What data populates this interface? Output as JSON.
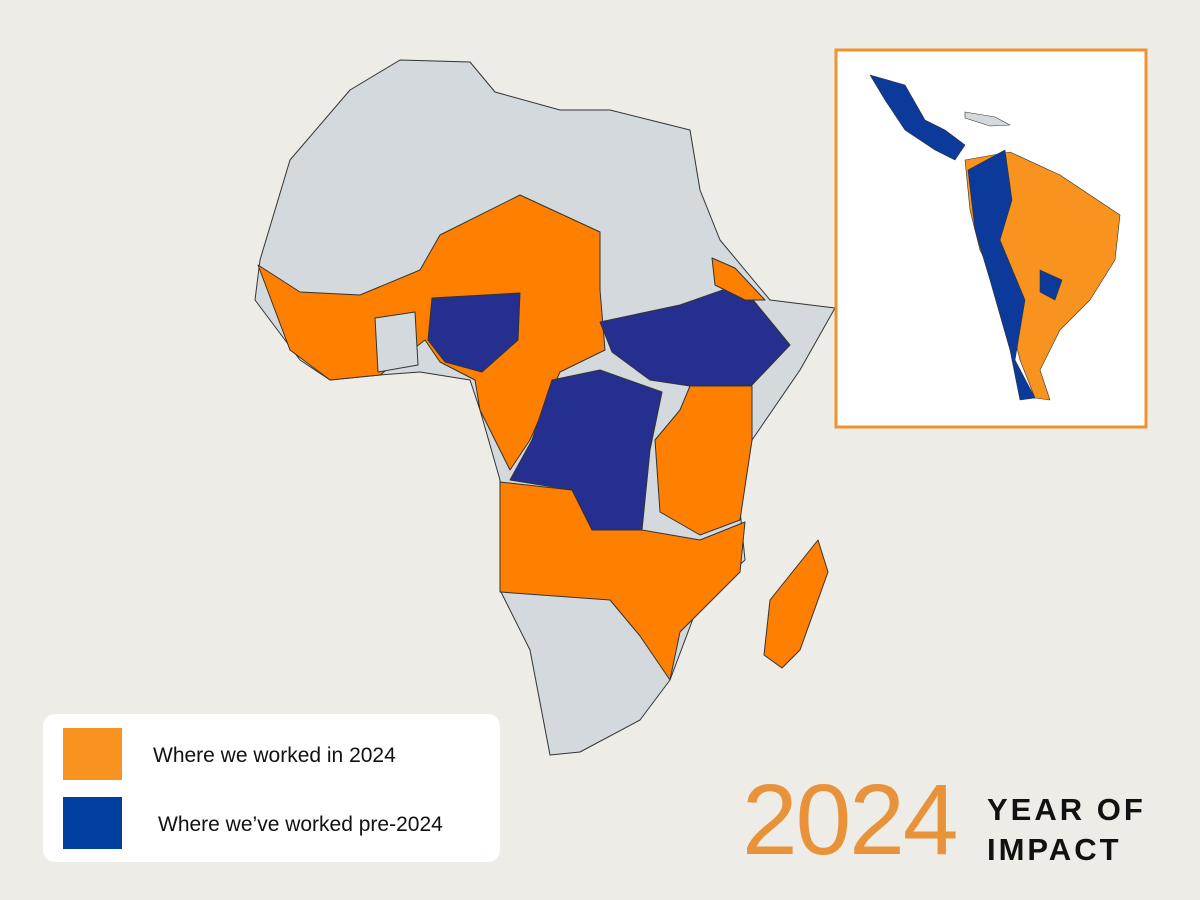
{
  "legend": {
    "items": [
      {
        "label": "Where we worked in 2024",
        "color": "#f7931e"
      },
      {
        "label": "Where we’ve worked pre-2024",
        "color": "#003f9e"
      }
    ]
  },
  "badge": {
    "year": "2024",
    "line1": "YEAR OF",
    "line2": "IMPACT"
  }
}
